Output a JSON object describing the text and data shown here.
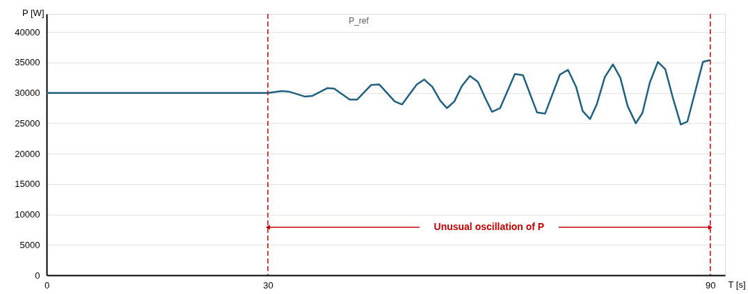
{
  "chart_data": {
    "type": "line",
    "title": "P_ref",
    "xlabel": "T [s]",
    "ylabel": "P [W]",
    "x": [
      0,
      30,
      31.9,
      32.9,
      35.0,
      36.0,
      38.1,
      39.0,
      41.1,
      42.1,
      44.0,
      45.1,
      47.2,
      48.2,
      50.2,
      51.2,
      52.3,
      53.4,
      54.3,
      55.3,
      56.3,
      57.4,
      58.5,
      59.5,
      60.4,
      61.5,
      63.5,
      64.6,
      66.5,
      67.6,
      69.6,
      70.7,
      71.8,
      72.7,
      73.7,
      74.6,
      75.7,
      76.8,
      77.8,
      78.8,
      79.9,
      80.8,
      81.8,
      82.9,
      83.9,
      84.9,
      86.0,
      86.9,
      89.0,
      90
    ],
    "series": [
      {
        "color": "#1f5f7f",
        "values": [
          30000,
          30000,
          30300,
          30200,
          29400,
          29500,
          30800,
          30700,
          28900,
          28900,
          31300,
          31400,
          28600,
          28100,
          31400,
          32200,
          31000,
          28700,
          27500,
          28600,
          31100,
          32800,
          31800,
          29100,
          26900,
          27500,
          33100,
          32900,
          26800,
          26600,
          33000,
          33800,
          31000,
          27000,
          25700,
          28100,
          32600,
          34700,
          32500,
          27800,
          25000,
          26700,
          31700,
          35100,
          33900,
          29300,
          24800,
          25300,
          35100,
          35400
        ]
      }
    ],
    "xlim": [
      0,
      92
    ],
    "xticks": [
      0,
      30,
      90
    ],
    "ylim": [
      0,
      43000
    ],
    "yticks": [
      0,
      5000,
      10000,
      15000,
      20000,
      25000,
      30000,
      35000,
      40000
    ],
    "grid": "y",
    "marker": "none",
    "line_style": "solid",
    "ref_lines": [
      {
        "axis": "x",
        "value": 30,
        "color": "#c00000",
        "line_style": "dashed"
      },
      {
        "axis": "x",
        "value": 90,
        "color": "#c00000",
        "line_style": "dashed"
      }
    ],
    "annotations": [
      "Unusual oscillation of P"
    ]
  }
}
